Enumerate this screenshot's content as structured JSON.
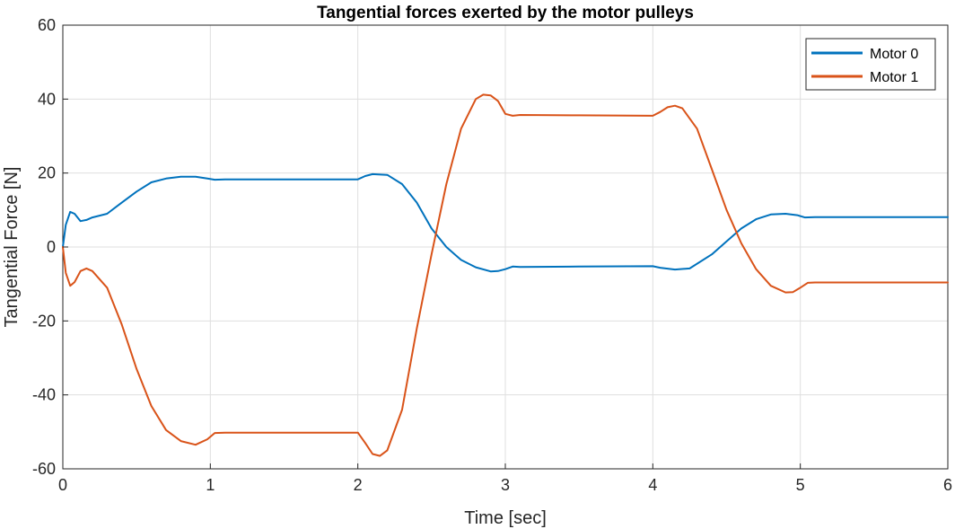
{
  "chart_data": {
    "type": "line",
    "title": "Tangential forces exerted by the motor pulleys",
    "xlabel": "Time [sec]",
    "ylabel": "Tangential Force [N]",
    "xlim": [
      0,
      6
    ],
    "ylim": [
      -60,
      60
    ],
    "xticks": [
      0,
      1,
      2,
      3,
      4,
      5,
      6
    ],
    "yticks": [
      -60,
      -40,
      -20,
      0,
      20,
      40,
      60
    ],
    "grid": true,
    "legend_position": "top-right",
    "series": [
      {
        "name": "Motor 0",
        "color": "#0072BD",
        "x": [
          0,
          0.02,
          0.05,
          0.08,
          0.12,
          0.16,
          0.2,
          0.3,
          0.4,
          0.5,
          0.6,
          0.7,
          0.8,
          0.9,
          0.98,
          1.03,
          1.1,
          1.5,
          2.0,
          2.05,
          2.1,
          2.2,
          2.3,
          2.4,
          2.5,
          2.6,
          2.7,
          2.8,
          2.9,
          2.95,
          3.0,
          3.05,
          3.1,
          3.5,
          4.0,
          4.05,
          4.15,
          4.25,
          4.4,
          4.5,
          4.6,
          4.7,
          4.8,
          4.9,
          4.98,
          5.03,
          5.1,
          5.5,
          6.0
        ],
        "y": [
          0,
          6,
          9.5,
          9,
          7,
          7.3,
          8,
          9,
          12,
          15,
          17.5,
          18.5,
          19,
          19,
          18.5,
          18.2,
          18.3,
          18.3,
          18.3,
          19.2,
          19.7,
          19.5,
          17,
          12,
          5,
          0,
          -3.5,
          -5.5,
          -6.6,
          -6.5,
          -6,
          -5.3,
          -5.4,
          -5.3,
          -5.2,
          -5.6,
          -6.1,
          -5.8,
          -2,
          1.5,
          5,
          7.5,
          8.8,
          9,
          8.6,
          8,
          8.1,
          8.1,
          8.1
        ]
      },
      {
        "name": "Motor 1",
        "color": "#D95319",
        "x": [
          0,
          0.02,
          0.05,
          0.08,
          0.12,
          0.16,
          0.2,
          0.3,
          0.4,
          0.5,
          0.6,
          0.7,
          0.8,
          0.9,
          0.98,
          1.03,
          1.1,
          1.5,
          2.0,
          2.05,
          2.1,
          2.15,
          2.2,
          2.3,
          2.4,
          2.5,
          2.6,
          2.7,
          2.8,
          2.85,
          2.9,
          2.95,
          3.0,
          3.05,
          3.1,
          3.5,
          4.0,
          4.05,
          4.1,
          4.15,
          4.2,
          4.3,
          4.4,
          4.5,
          4.6,
          4.7,
          4.8,
          4.9,
          4.95,
          5.0,
          5.05,
          5.1,
          5.5,
          6.0
        ],
        "y": [
          0,
          -7,
          -10.5,
          -9.5,
          -6.5,
          -5.8,
          -6.5,
          -11,
          -21,
          -33,
          -43,
          -49.5,
          -52.5,
          -53.5,
          -52,
          -50.3,
          -50.2,
          -50.2,
          -50.2,
          -53,
          -56,
          -56.5,
          -55,
          -44,
          -22,
          -2,
          17,
          32,
          40,
          41.2,
          41,
          39.5,
          36,
          35.5,
          35.7,
          35.6,
          35.5,
          36.5,
          37.8,
          38.2,
          37.5,
          32,
          21,
          10,
          1,
          -6,
          -10.5,
          -12.3,
          -12.2,
          -11,
          -9.7,
          -9.6,
          -9.6,
          -9.6
        ]
      }
    ]
  }
}
